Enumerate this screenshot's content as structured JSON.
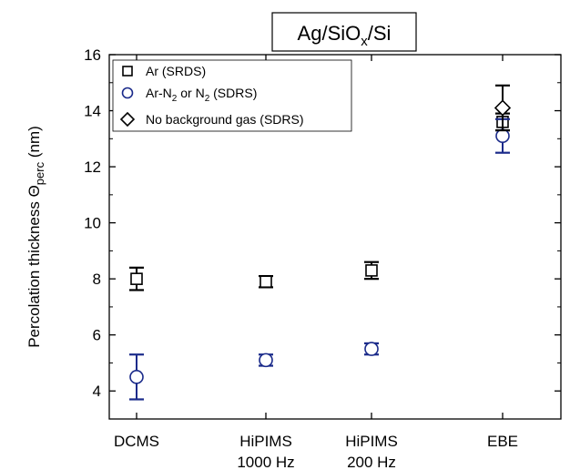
{
  "chart_data": {
    "type": "scatter",
    "title_parts": [
      "Ag/SiO",
      "x",
      "/Si"
    ],
    "xlabel": "",
    "ylabel_parts": [
      "Percolation thickness Θ",
      "perc",
      " (nm)"
    ],
    "categories": [
      [
        "DCMS"
      ],
      [
        "HiPIMS",
        "1000 Hz"
      ],
      [
        "HiPIMS",
        "200 Hz"
      ],
      [
        "EBE"
      ]
    ],
    "ylim": [
      3,
      16
    ],
    "yticks": [
      4,
      6,
      8,
      10,
      12,
      14,
      16
    ],
    "grid": false,
    "legend_position": "top-left",
    "series": [
      {
        "legend_parts": [
          "Ar (SRDS)"
        ],
        "marker": "square",
        "color": "#000000",
        "points": [
          {
            "x": 0,
            "y": 8.0,
            "err": 0.4
          },
          {
            "x": 1,
            "y": 7.9,
            "err": 0.2
          },
          {
            "x": 2,
            "y": 8.3,
            "err": 0.3
          },
          {
            "x": 3,
            "y": 13.6,
            "err": 0.3
          }
        ]
      },
      {
        "legend_parts": [
          "Ar-N",
          "2",
          " or N",
          "2",
          " (SDRS)"
        ],
        "marker": "circle",
        "color": "#1a2a8a",
        "points": [
          {
            "x": 0,
            "y": 4.5,
            "err": 0.8
          },
          {
            "x": 1,
            "y": 5.1,
            "err": 0.2
          },
          {
            "x": 2,
            "y": 5.5,
            "err": 0.2
          },
          {
            "x": 3,
            "y": 13.1,
            "err": 0.6
          }
        ]
      },
      {
        "legend_parts": [
          "No background gas (SDRS)"
        ],
        "marker": "diamond",
        "color": "#000000",
        "points": [
          {
            "x": 3,
            "y": 14.1,
            "err": 0.8
          }
        ]
      }
    ]
  }
}
